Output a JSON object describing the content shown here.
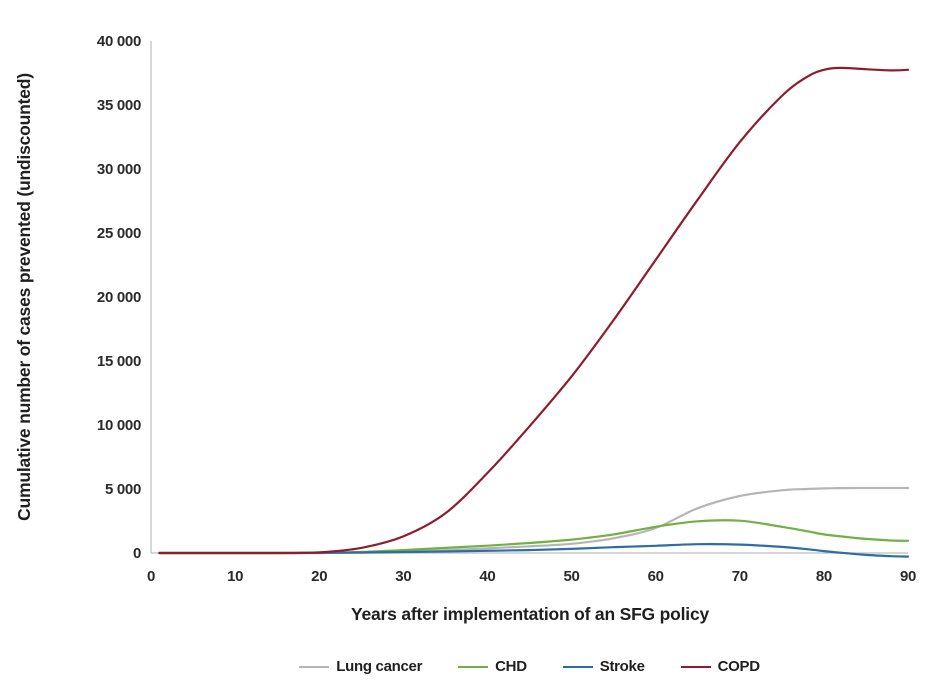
{
  "chart_data": {
    "type": "line",
    "title": "",
    "xlabel": "Years after implementation of an SFG policy",
    "ylabel": "Cumulative number of cases prevented (undiscounted)",
    "xlim": [
      0,
      90
    ],
    "ylim": [
      0,
      40000
    ],
    "grid": false,
    "legend_position": "bottom",
    "axis_color": "#c8c8c8",
    "x_ticks": [
      {
        "v": 0,
        "label": "0"
      },
      {
        "v": 10,
        "label": "10"
      },
      {
        "v": 20,
        "label": "20"
      },
      {
        "v": 30,
        "label": "30"
      },
      {
        "v": 40,
        "label": "40"
      },
      {
        "v": 50,
        "label": "50"
      },
      {
        "v": 60,
        "label": "60"
      },
      {
        "v": 70,
        "label": "70"
      },
      {
        "v": 80,
        "label": "80"
      },
      {
        "v": 90,
        "label": "90"
      }
    ],
    "y_ticks": [
      {
        "v": 0,
        "label": "0"
      },
      {
        "v": 5000,
        "label": "5 000"
      },
      {
        "v": 10000,
        "label": "10 000"
      },
      {
        "v": 15000,
        "label": "15 000"
      },
      {
        "v": 20000,
        "label": "20 000"
      },
      {
        "v": 25000,
        "label": "25 000"
      },
      {
        "v": 30000,
        "label": "30 000"
      },
      {
        "v": 35000,
        "label": "35 000"
      },
      {
        "v": 40000,
        "label": "40 000"
      }
    ],
    "x": [
      1,
      5,
      10,
      15,
      20,
      25,
      30,
      35,
      40,
      45,
      50,
      55,
      60,
      65,
      70,
      75,
      78,
      80,
      82,
      85,
      88,
      90
    ],
    "series": [
      {
        "name": "Lung cancer",
        "color": "#b5b5b5",
        "values": [
          0,
          0,
          0,
          0,
          0,
          30,
          100,
          220,
          360,
          520,
          720,
          1150,
          1950,
          3500,
          4450,
          4900,
          5000,
          5050,
          5070,
          5080,
          5080,
          5080
        ]
      },
      {
        "name": "CHD",
        "color": "#72b043",
        "values": [
          0,
          0,
          0,
          0,
          20,
          80,
          230,
          400,
          570,
          780,
          1050,
          1450,
          2050,
          2480,
          2520,
          2050,
          1700,
          1450,
          1300,
          1100,
          980,
          950
        ]
      },
      {
        "name": "Stroke",
        "color": "#2d6da3",
        "values": [
          0,
          0,
          0,
          0,
          10,
          40,
          80,
          120,
          170,
          230,
          320,
          450,
          560,
          690,
          660,
          480,
          300,
          150,
          20,
          -150,
          -250,
          -280
        ]
      },
      {
        "name": "COPD",
        "color": "#8e1c2b",
        "values": [
          0,
          0,
          0,
          0,
          50,
          400,
          1300,
          3100,
          6250,
          9900,
          13800,
          18200,
          22900,
          27600,
          32100,
          35700,
          37200,
          37750,
          37900,
          37800,
          37700,
          37750
        ]
      }
    ]
  }
}
